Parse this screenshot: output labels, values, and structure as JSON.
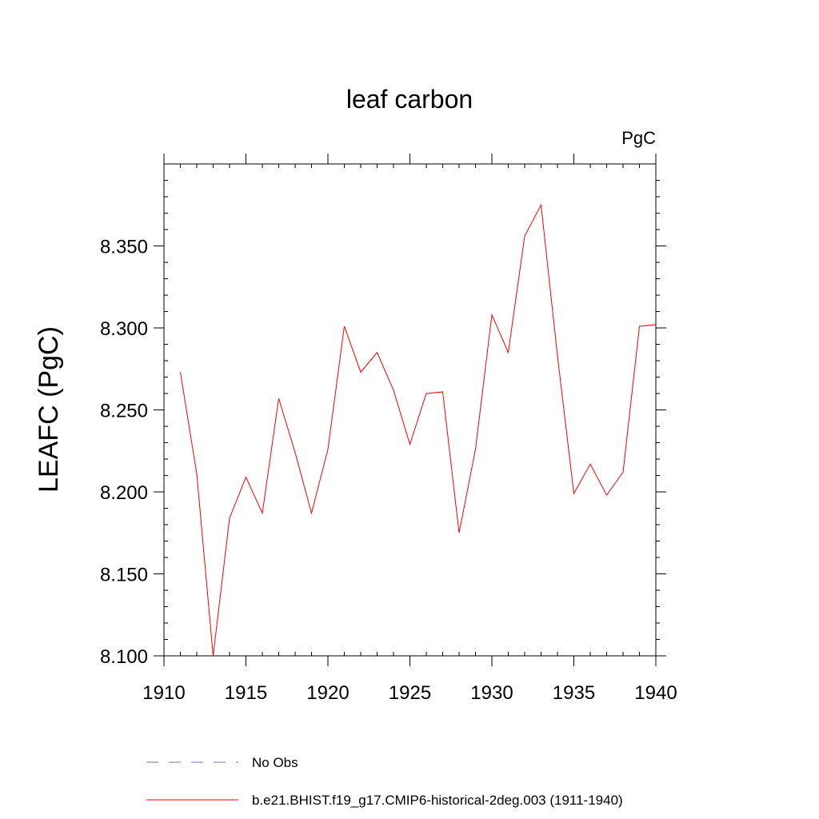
{
  "chart_data": {
    "type": "line",
    "title": "leaf carbon",
    "units_label": "PgC",
    "ylabel": "LEAFC  (PgC)",
    "xlabel": "",
    "xlim": [
      1910,
      1940
    ],
    "ylim": [
      8.1,
      8.4
    ],
    "x_ticks": [
      1910,
      1915,
      1920,
      1925,
      1930,
      1935,
      1940
    ],
    "x_tick_labels": [
      "1910",
      "1915",
      "1920",
      "1925",
      "1930",
      "1935",
      "1940"
    ],
    "y_ticks": [
      8.1,
      8.15,
      8.2,
      8.25,
      8.3,
      8.35
    ],
    "y_tick_labels": [
      "8.100",
      "8.150",
      "8.200",
      "8.250",
      "8.300",
      "8.350"
    ],
    "grid": false,
    "legend_position": "bottom",
    "legend": [
      {
        "label": "No Obs",
        "color": "#7b68c8",
        "style": "dashed"
      },
      {
        "label": "b.e21.BHIST.f19_g17.CMIP6-historical-2deg.003 (1911-1940)",
        "color": "#ff0000",
        "style": "solid"
      }
    ],
    "series": [
      {
        "name": "b.e21.BHIST.f19_g17.CMIP6-historical-2deg.003 (1911-1940)",
        "color": "#ff0000",
        "x": [
          1911,
          1912,
          1913,
          1914,
          1915,
          1916,
          1917,
          1918,
          1919,
          1920,
          1921,
          1922,
          1923,
          1924,
          1925,
          1926,
          1927,
          1928,
          1929,
          1930,
          1931,
          1932,
          1933,
          1934,
          1935,
          1936,
          1937,
          1938,
          1939,
          1940
        ],
        "values": [
          8.273,
          8.211,
          8.1,
          8.184,
          8.209,
          8.187,
          8.257,
          8.224,
          8.187,
          8.226,
          8.301,
          8.273,
          8.285,
          8.262,
          8.229,
          8.26,
          8.261,
          8.175,
          8.226,
          8.308,
          8.285,
          8.356,
          8.375,
          8.283,
          8.199,
          8.217,
          8.198,
          8.212,
          8.301,
          8.302
        ]
      }
    ]
  }
}
